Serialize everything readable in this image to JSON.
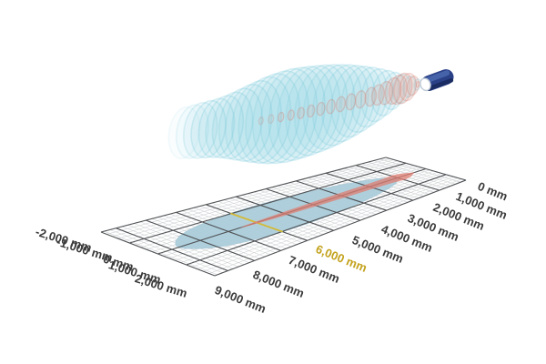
{
  "figure": {
    "kind": "ultrasonic-sensor-beam-spread-3d",
    "unit": "mm"
  },
  "chart_data": {
    "type": "area",
    "title": "",
    "xlabel": "",
    "ylabel": "",
    "legend": "none",
    "grid": {
      "major_step_mm": 1000,
      "minor_step_mm": 200
    },
    "distance_axis": {
      "unit": "mm",
      "range_mm": [
        0,
        9500
      ],
      "tick_values_mm": [
        0,
        1000,
        2000,
        3000,
        4000,
        5000,
        6000,
        7000,
        8000,
        9000
      ],
      "ticks": [
        "0 mm",
        "1,000 mm",
        "2,000 mm",
        "3,000 mm",
        "4,000 mm",
        "5,000 mm",
        "6,000 mm",
        "7,000 mm",
        "8,000 mm",
        "9,000 mm"
      ],
      "highlighted_tick": "6,000 mm",
      "highlighted_value_mm": 6000
    },
    "lateral_axis": {
      "unit": "mm",
      "range_mm": [
        -2000,
        2000
      ],
      "tick_values_mm": [
        -2000,
        -1000,
        0,
        1000,
        2000
      ],
      "ticks": [
        "-2,000 mm",
        "-1,000 mm",
        "0 mm",
        "1,000 mm",
        "2,000 mm"
      ]
    },
    "series": [
      {
        "name": "beam-envelope",
        "description": "wide translucent blue sound lobe drawn as stacked cross-section rings above the grid",
        "distance_mm": [
          0,
          300,
          700,
          1200,
          1800,
          2400,
          3000,
          3600,
          4200,
          4800,
          5300,
          5800,
          6300,
          6800,
          7300,
          7700,
          8100,
          8500,
          8900,
          9200,
          9500
        ],
        "halfwidth_mm": [
          120,
          300,
          480,
          700,
          950,
          1160,
          1340,
          1470,
          1560,
          1620,
          1640,
          1600,
          1500,
          1370,
          1230,
          1120,
          1040,
          1000,
          970,
          930,
          900
        ]
      },
      {
        "name": "beam-core",
        "description": "narrow red core of the beam drawn as stacked rings along the axis",
        "distance_mm": [
          100,
          300,
          500,
          700,
          900,
          1100,
          1400,
          1700,
          2000,
          2400,
          2800,
          3200,
          3600,
          4000,
          4400,
          4800,
          5200,
          5600,
          6000,
          6400
        ],
        "halfwidth_mm": [
          100,
          330,
          480,
          530,
          510,
          460,
          400,
          355,
          325,
          300,
          280,
          262,
          245,
          228,
          212,
          196,
          180,
          165,
          150,
          130
        ]
      },
      {
        "name": "floor-footprint",
        "description": "pale blue projection of the lobe onto the floor grid",
        "distance_mm": [
          900,
          1400,
          1900,
          2500,
          3100,
          3700,
          4300,
          4900,
          5500,
          6100,
          6700,
          7300,
          7800,
          8200,
          8500,
          8700,
          8780
        ],
        "halfwidth_mm": [
          0,
          420,
          640,
          810,
          920,
          990,
          1040,
          1060,
          1055,
          1030,
          960,
          860,
          730,
          570,
          380,
          180,
          0
        ]
      },
      {
        "name": "floor-core-projection",
        "description": "red arrow-like projection of the beam core onto the floor grid",
        "distance_mm": [
          400,
          700,
          950,
          1150,
          1400,
          2000,
          2600,
          3200,
          3800,
          4400,
          5000,
          5500,
          6000,
          6400,
          6600
        ],
        "halfwidth_mm": [
          0,
          240,
          330,
          300,
          260,
          235,
          215,
          195,
          172,
          150,
          125,
          100,
          70,
          40,
          0
        ]
      }
    ],
    "highlight_line": {
      "distance_mm": 6000,
      "halfwidth_mm": 1030,
      "color": "#d5ba35"
    }
  },
  "sensor": {
    "name": "cylindrical-ultrasonic-sensor",
    "body_color": "#2b4187",
    "body_highlight": "#4b68ae",
    "body_shadow": "#182a5e",
    "face_color": "#ffffff",
    "face_rim": "#c2cdd8"
  },
  "colors": {
    "background": "#ffffff",
    "minor_grid": "#cdd0d2",
    "major_grid": "#505356",
    "footprint_fill": "#abccda",
    "footprint_rim": "#9bbfcf",
    "floor_core_fill": "#df7e72",
    "lobe_fill": "#8fd6e4",
    "lobe_rim": "#6fc6da",
    "core_fill": "#e29b91",
    "core_rim": "#d5786b",
    "label_color": "#3a3a3a",
    "highlight_label_color": "#c3a21c"
  }
}
